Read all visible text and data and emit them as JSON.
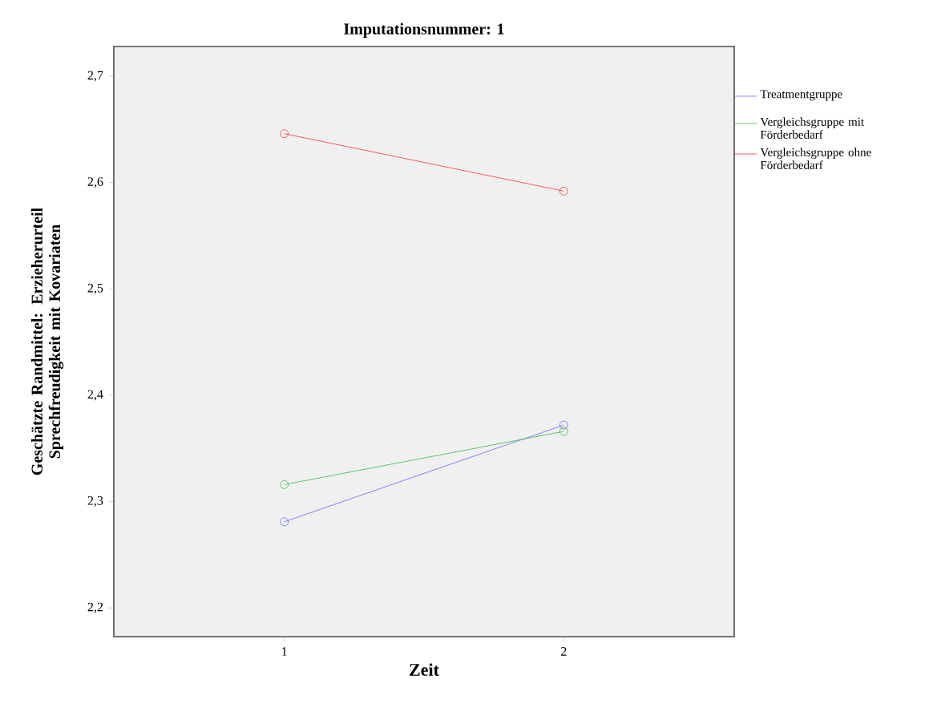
{
  "chart_data": {
    "type": "line",
    "title": "Imputationsnummer: 1",
    "xlabel": "Zeit",
    "ylabel": "Geschätzte Randmittel: Erzieherurteil Sprechfreudigkeit mit Kovariaten",
    "x": [
      1,
      2
    ],
    "xlim": [
      0.39,
      2.61
    ],
    "xticks": [
      1,
      2
    ],
    "series": [
      {
        "name": "Treatmentgruppe",
        "color": "#6666ff",
        "values": [
          2.281,
          2.372
        ]
      },
      {
        "name": "Vergleichsgruppe mit Förderbedarf",
        "color": "#33bb44",
        "values": [
          2.316,
          2.366
        ]
      },
      {
        "name": "Vergleichsgruppe ohne Förderbedarf",
        "color": "#ff3333",
        "values": [
          2.646,
          2.592
        ]
      }
    ],
    "ylim": [
      2.173,
      2.728
    ],
    "yticks": [
      {
        "value": 2.2,
        "label": "2,2"
      },
      {
        "value": 2.3,
        "label": "2,3"
      },
      {
        "value": 2.4,
        "label": "2,4"
      },
      {
        "value": 2.5,
        "label": "2,5"
      },
      {
        "value": 2.6,
        "label": "2,6"
      },
      {
        "value": 2.7,
        "label": "2,7"
      }
    ],
    "grid": false,
    "legend": "top right",
    "marker": "circle",
    "line_style": "solid"
  }
}
